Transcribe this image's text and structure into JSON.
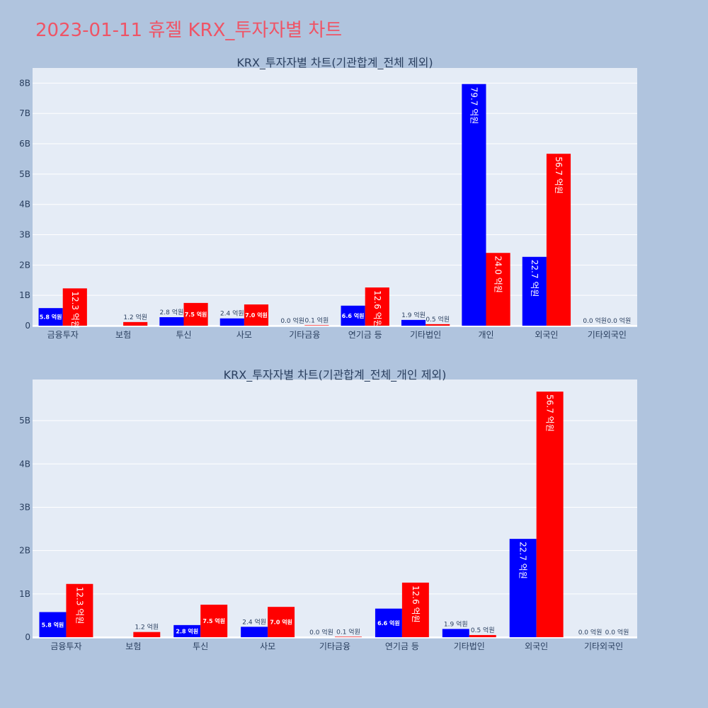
{
  "page_title": "2023-01-11 휴젤 KRX_투자자별 차트",
  "colors": {
    "page_bg": "#b0c4de",
    "plot_bg": "#e5ecf6",
    "buy": "#0000ff",
    "sell": "#ff0000",
    "title": "#ef5466"
  },
  "chart_data": [
    {
      "type": "bar",
      "title": "KRX_투자자별 차트(기관합계_전체 제외)",
      "categories": [
        "금융투자",
        "보험",
        "투신",
        "사모",
        "기타금융",
        "연기금 등",
        "기타법인",
        "개인",
        "외국인",
        "기타외국인"
      ],
      "series": [
        {
          "values": [
            5.8,
            0.0,
            2.8,
            2.4,
            0.0,
            6.6,
            1.9,
            79.7,
            22.7,
            0.0
          ],
          "labels": [
            "5.8 억원",
            "",
            "2.8 억원",
            "2.4 억원",
            "0.0 억원",
            "6.6 억원",
            "1.9 억원",
            "79.7 억원",
            "22.7 억원",
            "0.0 억원"
          ]
        },
        {
          "values": [
            12.3,
            1.2,
            7.5,
            7.0,
            0.1,
            12.6,
            0.5,
            24.0,
            56.7,
            0.0
          ],
          "labels": [
            "12.3 억원",
            "1.2 억원",
            "7.5 억원",
            "7.0 억원",
            "0.1 억원",
            "12.6 억원",
            "0.5 억원",
            "24.0 억원",
            "56.7 억원",
            "0.0 억원"
          ]
        }
      ],
      "value_unit": "억원",
      "ylim": [
        0,
        85
      ],
      "y_ticks": [
        0,
        10,
        20,
        30,
        40,
        50,
        60,
        70,
        80
      ],
      "y_tick_labels": [
        "0",
        "1B",
        "2B",
        "3B",
        "4B",
        "5B",
        "6B",
        "7B",
        "8B"
      ],
      "grid": true
    },
    {
      "type": "bar",
      "title": "KRX_투자자별 차트(기관합계_전체_개인 제외)",
      "categories": [
        "금융투자",
        "보험",
        "투신",
        "사모",
        "기타금융",
        "연기금 등",
        "기타법인",
        "외국인",
        "기타외국인"
      ],
      "series": [
        {
          "values": [
            5.8,
            0.0,
            2.8,
            2.4,
            0.0,
            6.6,
            1.9,
            22.7,
            0.0
          ],
          "labels": [
            "5.8 억원",
            "",
            "2.8 억원",
            "2.4 억원",
            "0.0 억원",
            "6.6 억원",
            "1.9 억원",
            "22.7 억원",
            "0.0 억원"
          ]
        },
        {
          "values": [
            12.3,
            1.2,
            7.5,
            7.0,
            0.1,
            12.6,
            0.5,
            56.7,
            0.0
          ],
          "labels": [
            "12.3 억원",
            "1.2 억원",
            "7.5 억원",
            "7.0 억원",
            "0.1 억원",
            "12.6 억원",
            "0.5 억원",
            "56.7 억원",
            "0.0 억원"
          ]
        }
      ],
      "value_unit": "억원",
      "ylim": [
        0,
        59.5
      ],
      "y_ticks": [
        0,
        10,
        20,
        30,
        40,
        50
      ],
      "y_tick_labels": [
        "0",
        "1B",
        "2B",
        "3B",
        "4B",
        "5B"
      ],
      "grid": true
    }
  ]
}
